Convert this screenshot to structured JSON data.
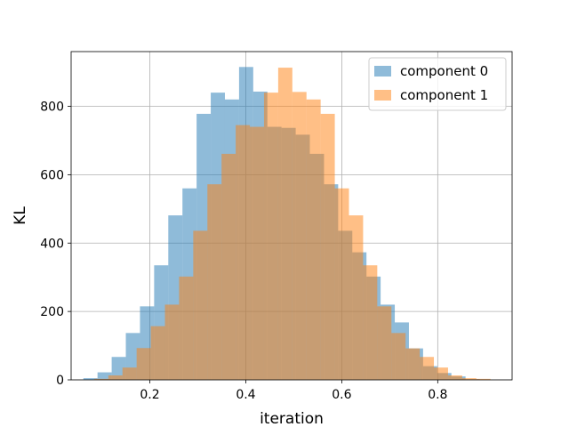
{
  "chart_data": {
    "type": "bar",
    "subtype": "overlapping-histogram",
    "xlabel": "iteration",
    "ylabel": "KL",
    "xlim": [
      0.036,
      0.955
    ],
    "ylim": [
      0,
      960
    ],
    "xticks": [
      0.2,
      0.4,
      0.6,
      0.8
    ],
    "xtick_labels": [
      "0.2",
      "0.4",
      "0.6",
      "0.8"
    ],
    "yticks": [
      0,
      200,
      400,
      600,
      800
    ],
    "ytick_labels": [
      "0",
      "200",
      "400",
      "600",
      "800"
    ],
    "grid": true,
    "legend_position": "upper right",
    "series": [
      {
        "name": "component 0",
        "color": "#1f77b4",
        "alpha": 0.5,
        "bin_edges": [
          0.0615,
          0.091,
          0.1205,
          0.15,
          0.1795,
          0.209,
          0.2385,
          0.268,
          0.2975,
          0.327,
          0.3565,
          0.386,
          0.4155,
          0.445,
          0.4745,
          0.504,
          0.5335,
          0.563,
          0.5925,
          0.622,
          0.6515,
          0.681,
          0.7105,
          0.74,
          0.7695,
          0.799,
          0.8285,
          0.858,
          0.8875
        ],
        "values": [
          5,
          22,
          67,
          137,
          215,
          335,
          481,
          560,
          778,
          840,
          820,
          915,
          843,
          740,
          737,
          717,
          661,
          572,
          436,
          373,
          302,
          220,
          168,
          92,
          40,
          20,
          10,
          2
        ]
      },
      {
        "name": "component 1",
        "color": "#ff7f0e",
        "alpha": 0.5,
        "bin_edges": [
          0.084,
          0.1135,
          0.143,
          0.1725,
          0.202,
          0.2315,
          0.261,
          0.2905,
          0.32,
          0.3495,
          0.379,
          0.4085,
          0.438,
          0.4675,
          0.497,
          0.5265,
          0.556,
          0.5855,
          0.615,
          0.6445,
          0.674,
          0.7035,
          0.733,
          0.7625,
          0.792,
          0.8215,
          0.851,
          0.8805,
          0.91
        ],
        "values": [
          3,
          13,
          36,
          93,
          157,
          220,
          302,
          436,
          572,
          661,
          745,
          740,
          840,
          913,
          842,
          820,
          778,
          560,
          481,
          335,
          215,
          137,
          92,
          67,
          36,
          13,
          5,
          3
        ]
      }
    ]
  }
}
